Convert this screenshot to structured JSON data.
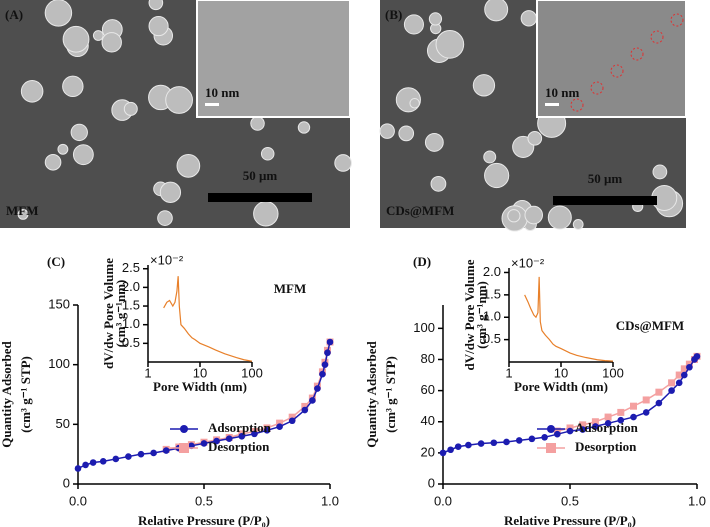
{
  "panels": [
    {
      "label": "(A)",
      "inset_scale": "10 nm",
      "scale": "50 μm",
      "sample": "MFM"
    },
    {
      "label": "(B)",
      "inset_scale": "10 nm",
      "scale": "50 μm",
      "sample": "CDs@MFM"
    }
  ],
  "chart_data": [
    {
      "type": "line",
      "panel_label": "(C)",
      "title": "MFM",
      "xlabel": "Relative Pressure (P/P₀)",
      "ylabel": [
        "Quantity Adsorbed",
        "(cm³ g⁻¹ STP)"
      ],
      "xlim": [
        0,
        1
      ],
      "xticks": [
        {
          "value": 0,
          "label": "0.0"
        },
        0.5,
        {
          "value": 1,
          "label": "1.0"
        }
      ],
      "ylim": [
        0,
        150
      ],
      "yticks": [
        0,
        50,
        100,
        150
      ],
      "legend": "lower right",
      "series": [
        {
          "name": "Desorption",
          "color": "#f4a0a0",
          "marker": "square",
          "x": [
            0.35,
            0.4,
            0.45,
            0.5,
            0.55,
            0.6,
            0.65,
            0.7,
            0.75,
            0.8,
            0.85,
            0.9,
            0.93,
            0.95,
            0.97,
            0.98,
            0.99,
            1.0
          ],
          "values": [
            29,
            31,
            33,
            35,
            37,
            39,
            42,
            44,
            47,
            51,
            56,
            65,
            72,
            82,
            94,
            102,
            112,
            119
          ]
        },
        {
          "name": "Adsorption",
          "color": "#1c1cb0",
          "marker": "circle",
          "x": [
            0.0,
            0.03,
            0.06,
            0.1,
            0.15,
            0.2,
            0.25,
            0.3,
            0.35,
            0.4,
            0.45,
            0.5,
            0.55,
            0.6,
            0.65,
            0.7,
            0.75,
            0.8,
            0.85,
            0.9,
            0.93,
            0.95,
            0.97,
            0.98,
            0.99,
            1.0
          ],
          "values": [
            13,
            16,
            18,
            19,
            21,
            23,
            25,
            26,
            28,
            30,
            32,
            34,
            36,
            38,
            40,
            42,
            45,
            48,
            53,
            62,
            70,
            80,
            92,
            100,
            110,
            119
          ]
        }
      ]
    },
    {
      "type": "line",
      "xscale": "log",
      "xlabel": "Pore Width (nm)",
      "ylabel": [
        "dV/dw Pore Volume",
        "(cm³ g⁻¹nm)"
      ],
      "y_multiplier": "×10⁻²",
      "xlim": [
        1,
        100
      ],
      "xticks": [
        1,
        10,
        100
      ],
      "ylim": [
        0,
        2.6
      ],
      "yticks": [
        0.5,
        {
          "value": 1,
          "label": "1.0"
        },
        1.5,
        {
          "value": 2,
          "label": "2.0"
        },
        2.5
      ],
      "series": [
        {
          "color": "#e8802a",
          "x": [
            2,
            2.3,
            2.6,
            3,
            3.3,
            3.6,
            3.8,
            4,
            4.3,
            5,
            6,
            7,
            8,
            10,
            15,
            20,
            30,
            50,
            70,
            100
          ],
          "values": [
            1.45,
            1.6,
            1.65,
            1.5,
            1.6,
            1.9,
            2.3,
            1.5,
            1.0,
            0.9,
            0.75,
            0.65,
            0.6,
            0.5,
            0.4,
            0.32,
            0.22,
            0.12,
            0.06,
            0.02
          ]
        }
      ]
    },
    {
      "type": "line",
      "panel_label": "(D)",
      "title": "CDs@MFM",
      "xlabel": "Relative Pressure (P/P₀)",
      "ylabel": [
        "Quantity Adsorbed",
        "(cm³ g⁻¹ STP)"
      ],
      "xlim": [
        0,
        1
      ],
      "xticks": [
        {
          "value": 0,
          "label": "0.0"
        },
        0.5,
        {
          "value": 1,
          "label": "1.0"
        }
      ],
      "ylim": [
        0,
        115
      ],
      "yticks": [
        0,
        20,
        40,
        60,
        80,
        100
      ],
      "legend": "lower right",
      "series": [
        {
          "name": "Desorption",
          "color": "#f4a0a0",
          "marker": "square",
          "x": [
            0.45,
            0.5,
            0.55,
            0.6,
            0.65,
            0.7,
            0.75,
            0.8,
            0.85,
            0.9,
            0.93,
            0.95,
            0.97,
            0.99,
            1.0
          ],
          "values": [
            34,
            36,
            38,
            40,
            43,
            46,
            50,
            54,
            59,
            65,
            70,
            74,
            77,
            80,
            82
          ]
        },
        {
          "name": "Adsorption",
          "color": "#1c1cb0",
          "marker": "circle",
          "x": [
            0.0,
            0.03,
            0.06,
            0.1,
            0.15,
            0.2,
            0.25,
            0.3,
            0.35,
            0.4,
            0.45,
            0.5,
            0.55,
            0.6,
            0.65,
            0.7,
            0.75,
            0.8,
            0.85,
            0.9,
            0.93,
            0.95,
            0.97,
            0.99,
            1.0
          ],
          "values": [
            20,
            22,
            24,
            25,
            26,
            26.5,
            27,
            28,
            29,
            30,
            32,
            34,
            35,
            37,
            39,
            41,
            43,
            46,
            52,
            60,
            65,
            70,
            75,
            80,
            82
          ]
        }
      ]
    },
    {
      "type": "line",
      "xscale": "log",
      "xlabel": "Pore Width (nm)",
      "ylabel": [
        "dV/dw Pore Volume",
        "(cm³ g⁻¹nm)"
      ],
      "y_multiplier": "×10⁻²",
      "xlim": [
        1,
        100
      ],
      "xticks": [
        1,
        10,
        100
      ],
      "ylim": [
        0,
        2.1
      ],
      "yticks": [
        0.5,
        {
          "value": 1,
          "label": "1.0"
        },
        1.5,
        {
          "value": 2,
          "label": "2.0"
        }
      ],
      "series": [
        {
          "color": "#e8802a",
          "x": [
            2,
            2.3,
            2.6,
            3,
            3.3,
            3.6,
            3.8,
            4,
            4.3,
            5,
            6,
            7,
            8,
            10,
            15,
            20,
            30,
            50,
            70,
            100
          ],
          "values": [
            1.5,
            1.35,
            1.2,
            1.05,
            1.0,
            1.1,
            1.9,
            0.9,
            0.7,
            0.6,
            0.5,
            0.4,
            0.35,
            0.3,
            0.2,
            0.15,
            0.1,
            0.05,
            0.03,
            0.02
          ]
        }
      ]
    }
  ]
}
